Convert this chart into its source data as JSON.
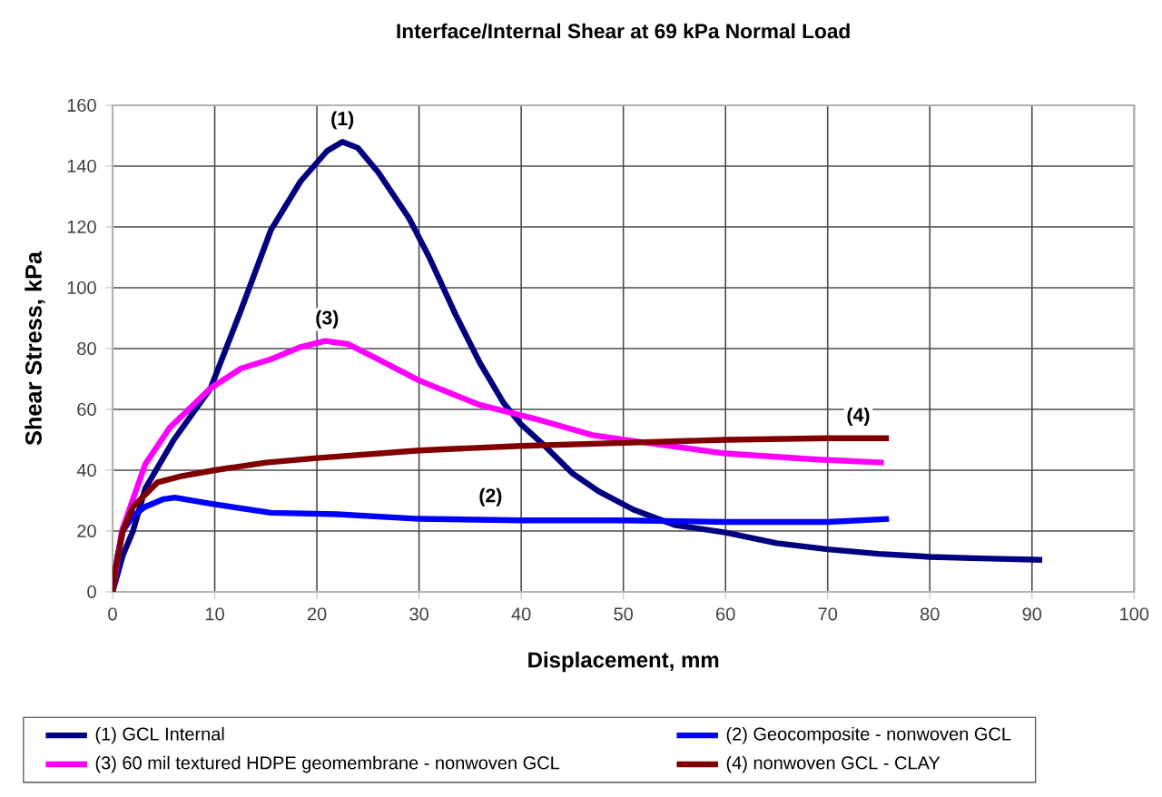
{
  "chart_data": {
    "type": "line",
    "title": "Interface/Internal Shear at 69 kPa Normal Load",
    "xlabel": "Displacement, mm",
    "ylabel": "Shear Stress, kPa",
    "xlim": [
      0,
      100
    ],
    "xticks": [
      0,
      10,
      20,
      30,
      40,
      50,
      60,
      70,
      80,
      90,
      100
    ],
    "ylim": [
      0,
      160
    ],
    "yticks": [
      0,
      20,
      40,
      60,
      80,
      100,
      120,
      140,
      160
    ],
    "grid": true,
    "legend": "bottom",
    "series": [
      {
        "name": "(1) GCL Internal",
        "color": "#000080",
        "x": [
          0,
          1,
          2,
          3.2,
          6,
          9.6,
          12.5,
          15.5,
          18.4,
          21,
          22.5,
          24,
          26,
          29,
          31,
          33.6,
          36,
          38.3,
          40,
          42.3,
          45,
          47.6,
          51,
          55,
          60,
          65,
          70,
          75,
          80,
          85,
          91
        ],
        "values": [
          0,
          12,
          20,
          34,
          50,
          67,
          92,
          119,
          135,
          145,
          148,
          146,
          138,
          123,
          110,
          91,
          75,
          62,
          55,
          48,
          39,
          33,
          27,
          22,
          19.5,
          16,
          14,
          12.5,
          11.5,
          11,
          10.5
        ]
      },
      {
        "name": "(2) Geocomposite -  nonwoven GCL",
        "color": "#0000ff",
        "x": [
          0,
          0.5,
          1,
          2,
          3.2,
          5,
          6.1,
          9.6,
          15.5,
          22,
          30,
          40,
          50,
          60,
          70,
          76
        ],
        "values": [
          0,
          12,
          20,
          25,
          28,
          30.5,
          31,
          29,
          26,
          25.5,
          24,
          23.5,
          23.5,
          23,
          23,
          24
        ]
      },
      {
        "name": "(3) 60 mil textured HDPE geomembrane - nonwoven GCL",
        "color": "#ff00ff",
        "x": [
          0,
          0.9,
          3.2,
          5.6,
          9.6,
          12.6,
          15.5,
          18.4,
          20.8,
          23,
          25.4,
          30,
          35.9,
          41.8,
          47,
          51.2,
          60,
          69,
          75.5
        ],
        "values": [
          0,
          20,
          42,
          54,
          67,
          73.5,
          76.5,
          80.5,
          82.5,
          81.5,
          77.5,
          69.5,
          61.5,
          56.5,
          51.5,
          49.5,
          45.5,
          43.5,
          42.5
        ]
      },
      {
        "name": "(4) nonwoven GCL - CLAY",
        "color": "#800000",
        "x": [
          0,
          0.3,
          1,
          2,
          4.4,
          6.7,
          10,
          15,
          20,
          30,
          40,
          50,
          60,
          70,
          76
        ],
        "values": [
          0,
          8,
          20,
          28,
          36,
          38,
          40,
          42.5,
          44,
          46.5,
          48,
          49,
          50,
          50.5,
          50.5
        ]
      }
    ],
    "annotations": [
      {
        "text": "(1)",
        "x": 22.5,
        "y": 148
      },
      {
        "text": "(2)",
        "x": 37,
        "y": 24
      },
      {
        "text": "(3)",
        "x": 21,
        "y": 82.5
      },
      {
        "text": "(4)",
        "x": 73,
        "y": 50.5
      }
    ]
  }
}
